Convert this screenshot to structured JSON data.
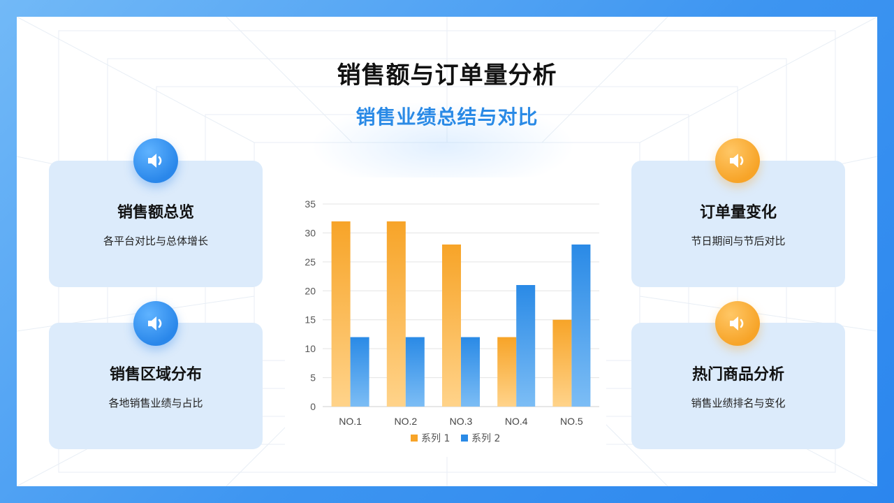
{
  "header": {
    "title": "销售额与订单量分析",
    "subtitle": "销售业绩总结与对比"
  },
  "cards": [
    {
      "title": "销售额总览",
      "desc": "各平台对比与总体增长",
      "icon": "speaker-icon",
      "color": "#2a87ea"
    },
    {
      "title": "销售区域分布",
      "desc": "各地销售业绩与占比",
      "icon": "speaker-icon",
      "color": "#2a87ea"
    },
    {
      "title": "订单量变化",
      "desc": "节日期间与节后对比",
      "icon": "speaker-icon",
      "color": "#f7a428"
    },
    {
      "title": "热门商品分析",
      "desc": "销售业绩排名与变化",
      "icon": "speaker-icon",
      "color": "#f7a428"
    }
  ],
  "chart_data": {
    "type": "bar",
    "categories": [
      "NO.1",
      "NO.2",
      "NO.3",
      "NO.4",
      "NO.5"
    ],
    "series": [
      {
        "name": "系列 1",
        "values": [
          32,
          32,
          28,
          12,
          15
        ],
        "color": "#f7a428"
      },
      {
        "name": "系列 2",
        "values": [
          12,
          12,
          12,
          21,
          28
        ],
        "color": "#2a8ae6"
      }
    ],
    "ylim": [
      0,
      35
    ],
    "yticks": [
      0,
      5,
      10,
      15,
      20,
      25,
      30,
      35
    ],
    "grid": true,
    "legend": "bottom"
  }
}
